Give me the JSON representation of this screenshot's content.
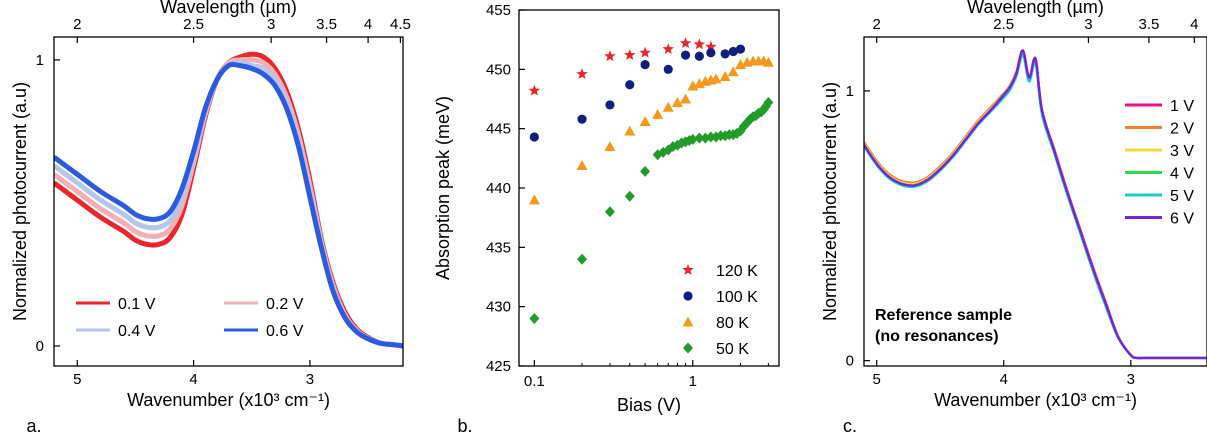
{
  "chart_data": [
    {
      "type": "line",
      "panel_label": "a.",
      "xlabel": "Wavenumber (x10³ cm⁻¹)",
      "ylabel": "Normalized photocurrent (a.u)",
      "top_axis_label": "Wavelength (µm)",
      "xlim": [
        5.2,
        2.2
      ],
      "ylim": [
        -0.07,
        1.08
      ],
      "x_ticks": [
        "5",
        "4",
        "3"
      ],
      "y_ticks": [
        "0",
        "1"
      ],
      "top_ticks": [
        "2",
        "2.5",
        "3",
        "3.5",
        "4",
        "4.5"
      ],
      "legend_position": "bottom-left",
      "series": [
        {
          "name": "0.1 V",
          "color": "#e8262c",
          "x": [
            5.2,
            5.0,
            4.8,
            4.6,
            4.5,
            4.4,
            4.3,
            4.2,
            4.1,
            4.0,
            3.9,
            3.8,
            3.7,
            3.6,
            3.5,
            3.4,
            3.3,
            3.2,
            3.1,
            3.0,
            2.9,
            2.8,
            2.7,
            2.6,
            2.5,
            2.4,
            2.3,
            2.2
          ],
          "y": [
            0.57,
            0.51,
            0.45,
            0.4,
            0.37,
            0.355,
            0.355,
            0.38,
            0.46,
            0.62,
            0.8,
            0.93,
            0.99,
            1.01,
            1.02,
            1.01,
            0.97,
            0.89,
            0.76,
            0.58,
            0.37,
            0.22,
            0.12,
            0.06,
            0.03,
            0.01,
            0.005,
            0.0
          ]
        },
        {
          "name": "0.2 V",
          "color": "#f4aeb6",
          "x": [
            5.2,
            5.0,
            4.8,
            4.6,
            4.5,
            4.4,
            4.3,
            4.2,
            4.1,
            4.0,
            3.9,
            3.8,
            3.7,
            3.6,
            3.5,
            3.4,
            3.3,
            3.2,
            3.1,
            3.0,
            2.9,
            2.8,
            2.7,
            2.6,
            2.5,
            2.4,
            2.3,
            2.2
          ],
          "y": [
            0.6,
            0.54,
            0.48,
            0.43,
            0.4,
            0.385,
            0.385,
            0.41,
            0.49,
            0.64,
            0.81,
            0.93,
            0.99,
            1.0,
            1.0,
            0.99,
            0.95,
            0.87,
            0.74,
            0.56,
            0.36,
            0.21,
            0.11,
            0.055,
            0.027,
            0.01,
            0.005,
            0.0
          ]
        },
        {
          "name": "0.4 V",
          "color": "#b4c6ec",
          "x": [
            5.2,
            5.0,
            4.8,
            4.6,
            4.5,
            4.4,
            4.3,
            4.2,
            4.1,
            4.0,
            3.9,
            3.8,
            3.7,
            3.6,
            3.5,
            3.4,
            3.3,
            3.2,
            3.1,
            3.0,
            2.9,
            2.8,
            2.7,
            2.6,
            2.5,
            2.4,
            2.3,
            2.2
          ],
          "y": [
            0.63,
            0.57,
            0.51,
            0.46,
            0.43,
            0.415,
            0.415,
            0.44,
            0.52,
            0.66,
            0.82,
            0.93,
            0.98,
            0.99,
            0.98,
            0.97,
            0.93,
            0.85,
            0.72,
            0.54,
            0.35,
            0.2,
            0.1,
            0.05,
            0.025,
            0.01,
            0.005,
            0.0
          ]
        },
        {
          "name": "0.6 V",
          "color": "#2d5be0",
          "x": [
            5.2,
            5.0,
            4.8,
            4.6,
            4.5,
            4.4,
            4.3,
            4.2,
            4.1,
            4.0,
            3.9,
            3.8,
            3.7,
            3.6,
            3.5,
            3.4,
            3.3,
            3.2,
            3.1,
            3.0,
            2.9,
            2.8,
            2.7,
            2.6,
            2.5,
            2.4,
            2.3,
            2.2
          ],
          "y": [
            0.66,
            0.6,
            0.54,
            0.49,
            0.46,
            0.445,
            0.445,
            0.47,
            0.55,
            0.68,
            0.83,
            0.93,
            0.98,
            0.98,
            0.97,
            0.95,
            0.91,
            0.83,
            0.7,
            0.52,
            0.34,
            0.19,
            0.1,
            0.05,
            0.025,
            0.01,
            0.005,
            0.0
          ]
        }
      ]
    },
    {
      "type": "scatter",
      "panel_label": "b.",
      "xlabel": "Bias (V)",
      "ylabel": "Absorption peak (meV)",
      "x_scale": "log",
      "xlim": [
        0.08,
        3.5
      ],
      "ylim": [
        425,
        455
      ],
      "x_ticks": [
        "0.1",
        "1"
      ],
      "y_ticks": [
        "425",
        "430",
        "435",
        "440",
        "445",
        "450",
        "455"
      ],
      "legend_position": "bottom-right",
      "series": [
        {
          "name": "120 K",
          "color": "#e8262c",
          "marker": "star",
          "x": [
            0.1,
            0.2,
            0.3,
            0.4,
            0.5,
            0.7,
            0.9,
            1.1,
            1.3
          ],
          "y": [
            448.2,
            449.6,
            451.1,
            451.2,
            451.4,
            451.7,
            452.2,
            452.1,
            451.9
          ]
        },
        {
          "name": "100 K",
          "color": "#10207a",
          "marker": "circle",
          "x": [
            0.1,
            0.2,
            0.3,
            0.4,
            0.5,
            0.7,
            0.9,
            1.1,
            1.3,
            1.6,
            1.8,
            2.0
          ],
          "y": [
            444.3,
            445.8,
            447.0,
            448.7,
            450.4,
            450.0,
            451.2,
            451.1,
            451.4,
            451.3,
            451.5,
            451.7
          ]
        },
        {
          "name": "80 K",
          "color": "#f59a1c",
          "marker": "triangle",
          "x": [
            0.1,
            0.2,
            0.3,
            0.4,
            0.5,
            0.6,
            0.7,
            0.8,
            0.9,
            1.0,
            1.1,
            1.2,
            1.3,
            1.4,
            1.6,
            1.8,
            2.0,
            2.2,
            2.4,
            2.6,
            2.8,
            3.0
          ],
          "y": [
            439.0,
            441.9,
            443.5,
            444.8,
            445.6,
            446.2,
            446.8,
            447.2,
            447.5,
            448.6,
            448.8,
            449.0,
            449.1,
            449.2,
            449.4,
            449.8,
            450.4,
            450.6,
            450.7,
            450.7,
            450.7,
            450.6
          ]
        },
        {
          "name": "50 K",
          "color": "#239a2c",
          "marker": "diamond",
          "x": [
            0.1,
            0.2,
            0.3,
            0.4,
            0.5,
            0.6,
            0.65,
            0.7,
            0.75,
            0.8,
            0.85,
            0.9,
            0.95,
            1.0,
            1.1,
            1.2,
            1.3,
            1.4,
            1.5,
            1.6,
            1.7,
            1.8,
            1.9,
            2.0,
            2.1,
            2.2,
            2.3,
            2.4,
            2.5,
            2.6,
            2.7,
            2.8,
            2.9,
            3.0
          ],
          "y": [
            429.0,
            434.0,
            438.0,
            439.3,
            441.4,
            442.8,
            443.0,
            443.2,
            443.5,
            443.6,
            443.8,
            443.9,
            444.0,
            444.1,
            444.2,
            444.2,
            444.3,
            444.3,
            444.4,
            444.4,
            444.5,
            444.5,
            444.6,
            444.8,
            445.2,
            445.5,
            445.8,
            446.0,
            446.1,
            446.3,
            446.4,
            446.6,
            446.9,
            447.2
          ]
        }
      ]
    },
    {
      "type": "line",
      "panel_label": "c.",
      "xlabel": "Wavenumber (x10³ cm⁻¹)",
      "ylabel": "Normalized photocurrent (a.u)",
      "top_axis_label": "Wavelength (µm)",
      "annotation": [
        "Reference sample",
        "(no resonances)"
      ],
      "xlim": [
        5.1,
        2.4
      ],
      "ylim": [
        -0.02,
        1.2
      ],
      "x_ticks": [
        "5",
        "4",
        "3"
      ],
      "y_ticks": [
        "0",
        "1"
      ],
      "top_ticks": [
        "2",
        "2.5",
        "3",
        "3.5",
        "4"
      ],
      "legend_position": "top-right",
      "series": [
        {
          "name": "1 V",
          "color": "#e6148c",
          "x": [
            5.1,
            5.0,
            4.9,
            4.8,
            4.7,
            4.6,
            4.5,
            4.4,
            4.3,
            4.2,
            4.1,
            4.0,
            3.95,
            3.9,
            3.85,
            3.8,
            3.75,
            3.7,
            3.6,
            3.5,
            3.4,
            3.3,
            3.2,
            3.1,
            3.0,
            2.95,
            2.9,
            2.8,
            2.7,
            2.6,
            2.5,
            2.4
          ],
          "y": [
            0.81,
            0.74,
            0.69,
            0.665,
            0.66,
            0.68,
            0.72,
            0.77,
            0.83,
            0.89,
            0.94,
            0.99,
            1.02,
            1.07,
            1.15,
            1.05,
            1.12,
            0.93,
            0.78,
            0.63,
            0.49,
            0.35,
            0.22,
            0.09,
            0.02,
            0.01,
            0.01,
            0.01,
            0.01,
            0.01,
            0.01,
            0.01
          ]
        },
        {
          "name": "2 V",
          "color": "#f08230",
          "x": [
            5.1,
            5.0,
            4.9,
            4.8,
            4.7,
            4.6,
            4.5,
            4.4,
            4.3,
            4.2,
            4.1,
            4.0,
            3.95,
            3.9,
            3.85,
            3.8,
            3.75,
            3.7,
            3.6,
            3.5,
            3.4,
            3.3,
            3.2,
            3.1,
            3.0,
            2.95,
            2.9,
            2.8,
            2.7,
            2.6,
            2.5,
            2.4
          ],
          "y": [
            0.81,
            0.74,
            0.69,
            0.665,
            0.66,
            0.68,
            0.72,
            0.77,
            0.83,
            0.89,
            0.94,
            0.99,
            1.02,
            1.07,
            1.15,
            1.05,
            1.12,
            0.93,
            0.78,
            0.63,
            0.49,
            0.35,
            0.22,
            0.09,
            0.02,
            0.01,
            0.01,
            0.01,
            0.01,
            0.01,
            0.01,
            0.01
          ]
        },
        {
          "name": "3 V",
          "color": "#eede3c",
          "x": [
            5.1,
            5.0,
            4.9,
            4.8,
            4.7,
            4.6,
            4.5,
            4.4,
            4.3,
            4.2,
            4.1,
            4.0,
            3.95,
            3.9,
            3.85,
            3.8,
            3.75,
            3.7,
            3.6,
            3.5,
            3.4,
            3.3,
            3.2,
            3.1,
            3.0,
            2.95,
            2.9,
            2.8,
            2.7,
            2.6,
            2.5,
            2.4
          ],
          "y": [
            0.805,
            0.735,
            0.685,
            0.66,
            0.655,
            0.675,
            0.715,
            0.765,
            0.825,
            0.885,
            0.935,
            0.985,
            1.015,
            1.065,
            1.14,
            1.045,
            1.11,
            0.925,
            0.775,
            0.625,
            0.485,
            0.345,
            0.215,
            0.088,
            0.02,
            0.01,
            0.01,
            0.01,
            0.01,
            0.01,
            0.01,
            0.01
          ]
        },
        {
          "name": "4 V",
          "color": "#2ed84a",
          "x": [
            5.1,
            5.0,
            4.9,
            4.8,
            4.7,
            4.6,
            4.5,
            4.4,
            4.3,
            4.2,
            4.1,
            4.0,
            3.95,
            3.9,
            3.85,
            3.8,
            3.75,
            3.7,
            3.6,
            3.5,
            3.4,
            3.3,
            3.2,
            3.1,
            3.0,
            2.95,
            2.9,
            2.8,
            2.7,
            2.6,
            2.5,
            2.4
          ],
          "y": [
            0.8,
            0.73,
            0.68,
            0.655,
            0.65,
            0.67,
            0.71,
            0.76,
            0.82,
            0.88,
            0.93,
            0.98,
            1.01,
            1.06,
            1.14,
            1.04,
            1.11,
            0.92,
            0.77,
            0.62,
            0.48,
            0.34,
            0.21,
            0.087,
            0.02,
            0.01,
            0.01,
            0.01,
            0.01,
            0.01,
            0.01,
            0.01
          ]
        },
        {
          "name": "5 V",
          "color": "#1ec8d0",
          "x": [
            5.1,
            5.0,
            4.9,
            4.8,
            4.7,
            4.6,
            4.5,
            4.4,
            4.3,
            4.2,
            4.1,
            4.0,
            3.95,
            3.9,
            3.85,
            3.8,
            3.75,
            3.7,
            3.6,
            3.5,
            3.4,
            3.3,
            3.2,
            3.1,
            3.0,
            2.95,
            2.9,
            2.8,
            2.7,
            2.6,
            2.5,
            2.4
          ],
          "y": [
            0.795,
            0.725,
            0.675,
            0.65,
            0.645,
            0.665,
            0.705,
            0.755,
            0.815,
            0.875,
            0.925,
            0.975,
            1.005,
            1.055,
            1.135,
            1.035,
            1.105,
            0.915,
            0.765,
            0.615,
            0.475,
            0.335,
            0.205,
            0.085,
            0.02,
            0.01,
            0.01,
            0.01,
            0.01,
            0.01,
            0.01,
            0.01
          ]
        },
        {
          "name": "6 V",
          "color": "#7a22d8",
          "x": [
            5.1,
            5.0,
            4.9,
            4.8,
            4.7,
            4.6,
            4.5,
            4.4,
            4.3,
            4.2,
            4.1,
            4.0,
            3.95,
            3.9,
            3.85,
            3.8,
            3.75,
            3.7,
            3.6,
            3.5,
            3.4,
            3.3,
            3.2,
            3.1,
            3.0,
            2.95,
            2.9,
            2.8,
            2.7,
            2.6,
            2.5,
            2.4
          ],
          "y": [
            0.8,
            0.73,
            0.68,
            0.655,
            0.65,
            0.67,
            0.71,
            0.76,
            0.82,
            0.88,
            0.93,
            0.985,
            1.015,
            1.065,
            1.15,
            1.05,
            1.12,
            0.93,
            0.775,
            0.625,
            0.485,
            0.345,
            0.215,
            0.088,
            0.02,
            0.01,
            0.01,
            0.01,
            0.01,
            0.01,
            0.01,
            0.01
          ]
        }
      ]
    }
  ]
}
